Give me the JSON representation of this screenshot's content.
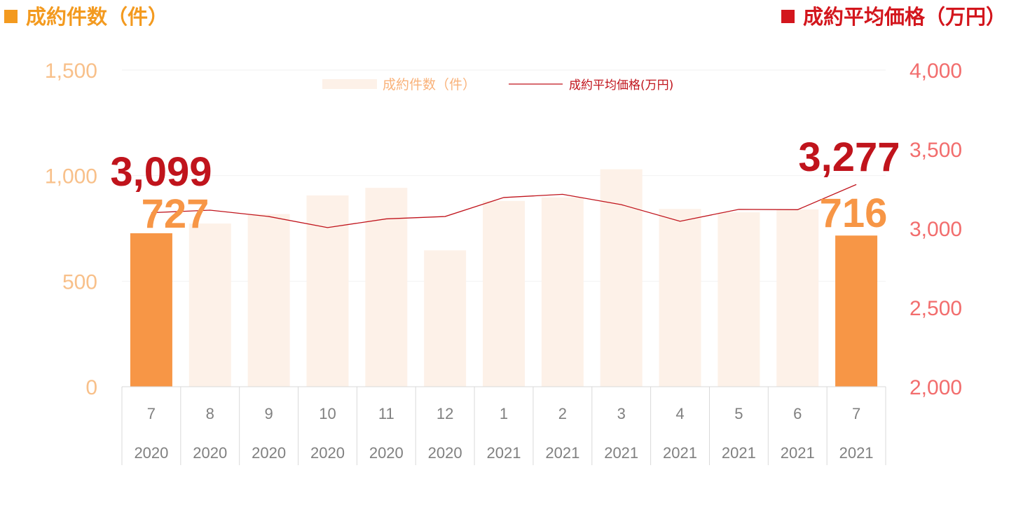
{
  "header": {
    "left_title": "成約件数（件）",
    "right_title": "成約平均価格（万円）"
  },
  "colors": {
    "left_accent": "#f39a1f",
    "right_accent": "#d3161d",
    "highlight_bar": "#f79646",
    "faded_bar": "#fdf1e8",
    "line": "#c0141c",
    "left_tick": "#f8c08a",
    "right_tick": "#f26d6d"
  },
  "chart_data": {
    "type": "bar",
    "categories": [
      "7",
      "8",
      "9",
      "10",
      "11",
      "12",
      "1",
      "2",
      "3",
      "4",
      "5",
      "6",
      "7"
    ],
    "category_years": [
      "2020",
      "2020",
      "2020",
      "2020",
      "2020",
      "2020",
      "2021",
      "2021",
      "2021",
      "2021",
      "2021",
      "2021",
      "2021"
    ],
    "series": [
      {
        "name": "成約件数（件）",
        "type": "bar",
        "axis": "left",
        "values": [
          727,
          773,
          818,
          906,
          942,
          646,
          880,
          897,
          1030,
          842,
          826,
          840,
          716
        ]
      },
      {
        "name": "成約平均価格(万円)",
        "type": "line",
        "axis": "right",
        "values": [
          3099,
          3115,
          3075,
          3005,
          3060,
          3075,
          3195,
          3215,
          3150,
          3045,
          3120,
          3118,
          3277
        ]
      }
    ],
    "highlighted_indices": [
      0,
      12
    ],
    "left_axis": {
      "ylim": [
        0,
        1500
      ],
      "ticks": [
        "0",
        "500",
        "1,000",
        "1,500"
      ]
    },
    "right_axis": {
      "ylim": [
        2000,
        4000
      ],
      "ticks": [
        "2,000",
        "2,500",
        "3,000",
        "3,500",
        "4,000"
      ]
    },
    "annotations": {
      "first_price": "3,099",
      "first_count": "727",
      "last_price": "3,277",
      "last_count": "716"
    },
    "legend_placement": "top-center",
    "grid": true
  }
}
